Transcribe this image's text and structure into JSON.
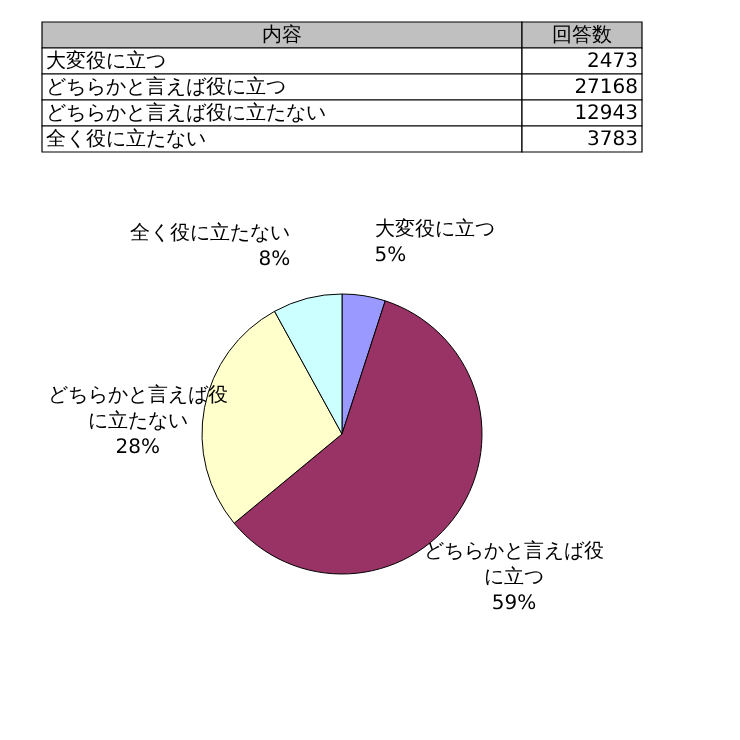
{
  "chart_data": [
    {
      "type": "other",
      "categories": [
        "大変役に立つ",
        "どちらかと言えば役に立つ",
        "どちらかと言えば役に立たない",
        "全く役に立たない"
      ],
      "values": [
        2473,
        27168,
        12943,
        3783
      ],
      "data_labels": true,
      "annotations": [
        "内容",
        "回答数"
      ]
    },
    {
      "type": "pie",
      "categories": [
        "大変役に立つ",
        "どちらかと言えば役に立つ",
        "どちらかと言えば役に立たない",
        "全く役に立たない"
      ],
      "legend": false,
      "values": [
        5,
        59,
        28,
        8
      ],
      "colors": [
        "#9999ff",
        "#993366",
        "#ffffcc",
        "#ccffff"
      ],
      "value_labels": [
        "5%",
        "59%",
        "28%",
        "8%"
      ]
    }
  ]
}
